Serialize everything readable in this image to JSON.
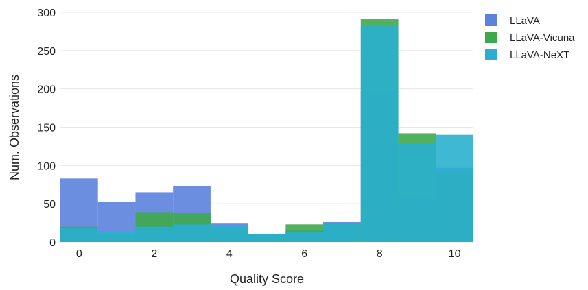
{
  "chart_data": {
    "type": "bar",
    "xlabel": "Quality Score",
    "ylabel": "Num. Observations",
    "x": [
      0,
      1,
      2,
      3,
      4,
      5,
      6,
      7,
      8,
      9,
      10
    ],
    "xticks": [
      0,
      2,
      4,
      6,
      8,
      10
    ],
    "yticks": [
      0,
      50,
      100,
      150,
      200,
      250,
      300
    ],
    "xlim": [
      -0.5,
      10.5
    ],
    "ylim": [
      0,
      300
    ],
    "grid": true,
    "legend_position": "top-right",
    "series": [
      {
        "name": "LLaVA",
        "color": "#5b82dd",
        "values": [
          83,
          52,
          65,
          73,
          24,
          10,
          15,
          26,
          197,
          58,
          97
        ]
      },
      {
        "name": "LLaVA-Vicuna",
        "color": "#3fa84c",
        "values": [
          20,
          10,
          39,
          38,
          17,
          10,
          23,
          25,
          291,
          142,
          91
        ]
      },
      {
        "name": "LLaVA-NeXT",
        "color": "#2ab0cf",
        "values": [
          18,
          14,
          20,
          23,
          21,
          10,
          13,
          25,
          282,
          129,
          140
        ]
      }
    ]
  }
}
